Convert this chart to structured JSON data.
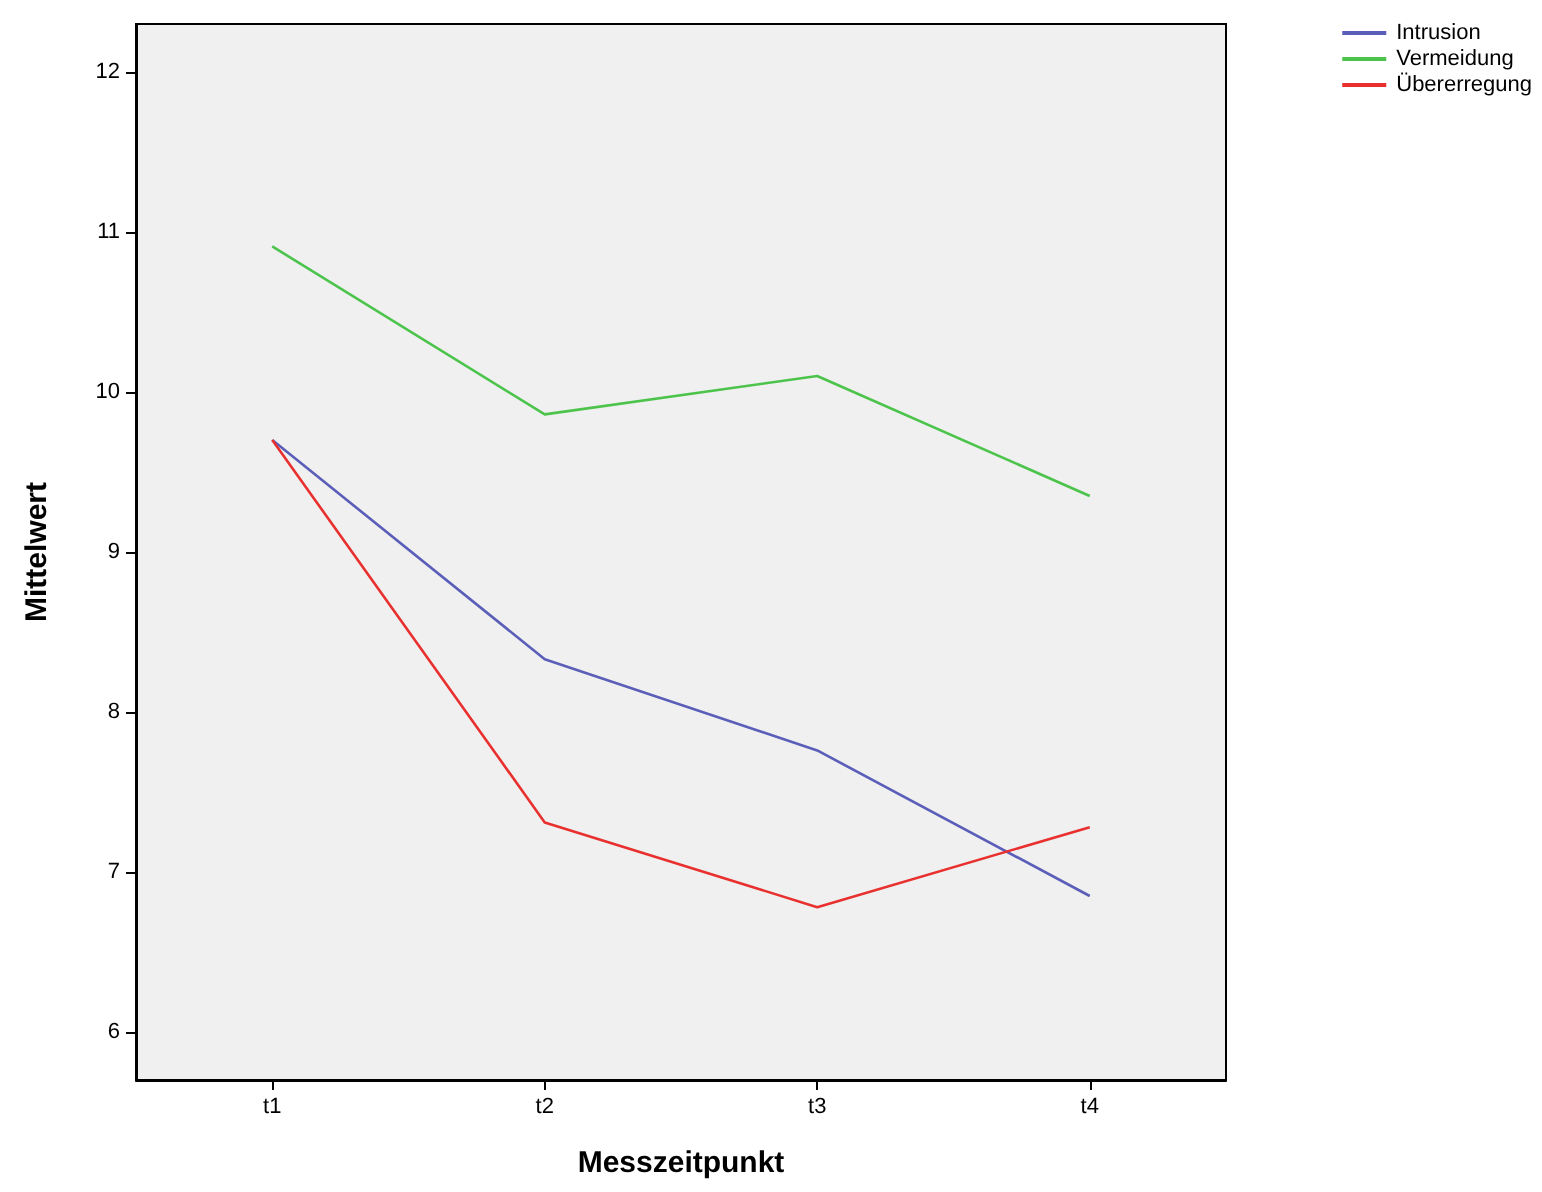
{
  "chart_data": {
    "type": "line",
    "xlabel": "Messzeitpunkt",
    "ylabel": "Mittelwert",
    "categories": [
      "t1",
      "t2",
      "t3",
      "t4"
    ],
    "series": [
      {
        "name": "Intrusion",
        "color": "#5a5eb8",
        "values": [
          9.7,
          8.33,
          7.76,
          6.85
        ]
      },
      {
        "name": "Vermeidung",
        "color": "#4cc44c",
        "values": [
          10.91,
          9.86,
          10.1,
          9.35
        ]
      },
      {
        "name": "Übererregung",
        "color": "#e8302e",
        "values": [
          9.7,
          7.31,
          6.78,
          7.28
        ]
      }
    ],
    "ylim": [
      5.7,
      12.3
    ],
    "yticks": [
      6,
      7,
      8,
      9,
      10,
      11,
      12
    ],
    "grid": false,
    "legend": "top right",
    "marker": "none",
    "line_style": "solid"
  }
}
